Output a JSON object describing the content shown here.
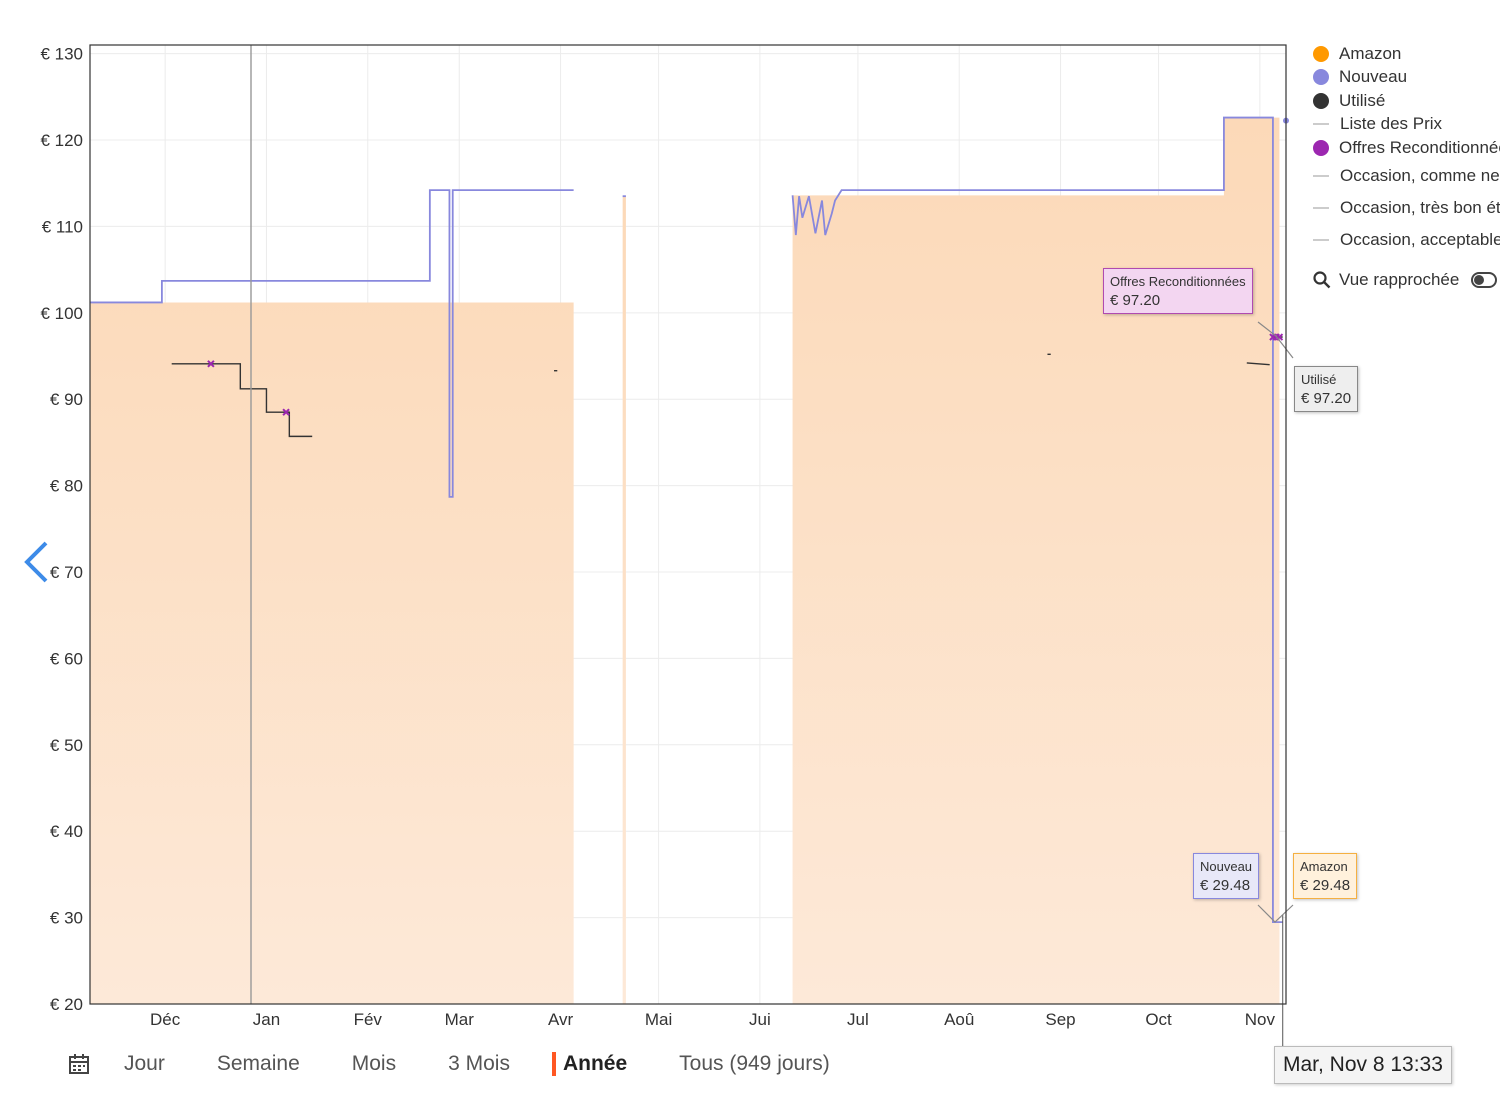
{
  "chart_data": {
    "type": "line",
    "title": "",
    "xlabel": "",
    "ylabel": "",
    "y_tick_labels": [
      "€ 20",
      "€ 30",
      "€ 40",
      "€ 50",
      "€ 60",
      "€ 70",
      "€ 80",
      "€ 90",
      "€ 100",
      "€ 110",
      "€ 120",
      "€ 130"
    ],
    "ylim": [
      20,
      131
    ],
    "x_tick_labels": [
      "Déc",
      "Jan",
      "Fév",
      "Mar",
      "Avr",
      "Mai",
      "Jui",
      "Jul",
      "Aoû",
      "Sep",
      "Oct",
      "Nov"
    ],
    "xlim": [
      "2021-11-08",
      "2022-11-09"
    ],
    "grid": true,
    "legend_position": "right",
    "series": [
      {
        "name": "Amazon",
        "color": "#ff9900",
        "style": "filled-area",
        "segments": [
          [
            [
              "2021-11-08",
              101.2
            ],
            [
              "2022-04-05",
              114.2
            ]
          ],
          [
            [
              "2022-04-20",
              113.5
            ],
            [
              "2022-04-21",
              113.5
            ]
          ],
          [
            [
              "2022-06-11",
              113.6
            ],
            [
              "2022-10-21",
              122.6
            ],
            [
              "2022-11-07",
              122.6
            ]
          ]
        ],
        "current_value": 29.48
      },
      {
        "name": "Nouveau",
        "color": "#8888dd",
        "style": "step-line",
        "segments": [
          [
            [
              "2021-11-08",
              101.2
            ],
            [
              "2021-11-30",
              101.2
            ],
            [
              "2021-11-30",
              103.7
            ],
            [
              "2022-02-20",
              103.7
            ],
            [
              "2022-02-20",
              114.2
            ],
            [
              "2022-02-26",
              114.2
            ],
            [
              "2022-02-26",
              78.7
            ],
            [
              "2022-02-27",
              78.7
            ],
            [
              "2022-02-27",
              114.2
            ],
            [
              "2022-04-05",
              114.2
            ]
          ],
          [
            [
              "2022-04-20",
              113.5
            ],
            [
              "2022-04-21",
              113.5
            ]
          ],
          [
            [
              "2022-06-11",
              113.6
            ],
            [
              "2022-06-12",
              109.0
            ],
            [
              "2022-06-13",
              113.5
            ],
            [
              "2022-06-14",
              111.0
            ],
            [
              "2022-06-16",
              113.5
            ],
            [
              "2022-06-18",
              109.2
            ],
            [
              "2022-06-20",
              113.0
            ],
            [
              "2022-06-21",
              109.0
            ],
            [
              "2022-06-23",
              111.5
            ],
            [
              "2022-06-24",
              113.0
            ],
            [
              "2022-06-26",
              114.2
            ],
            [
              "2022-10-21",
              114.2
            ],
            [
              "2022-10-21",
              122.6
            ],
            [
              "2022-11-05",
              122.6
            ],
            [
              "2022-11-05",
              29.48
            ],
            [
              "2022-11-08",
              29.48
            ]
          ]
        ],
        "current_value": 29.48
      },
      {
        "name": "Utilisé",
        "color": "#333333",
        "style": "step-line",
        "segments": [
          [
            [
              "2021-12-03",
              94.1
            ],
            [
              "2021-12-24",
              94.1
            ],
            [
              "2021-12-24",
              91.2
            ],
            [
              "2022-01-01",
              91.2
            ],
            [
              "2022-01-01",
              88.5
            ],
            [
              "2022-01-08",
              88.5
            ],
            [
              "2022-01-08",
              85.7
            ],
            [
              "2022-01-15",
              85.7
            ]
          ],
          [
            [
              "2022-03-30",
              93.3
            ],
            [
              "2022-03-31",
              93.3
            ]
          ],
          [
            [
              "2022-08-28",
              95.2
            ],
            [
              "2022-08-29",
              95.2
            ]
          ],
          [
            [
              "2022-10-28",
              94.2
            ],
            [
              "2022-11-04",
              94.0
            ]
          ],
          [
            [
              "2022-11-05",
              97.2
            ],
            [
              "2022-11-08",
              97.2
            ]
          ]
        ],
        "current_value": 97.2
      },
      {
        "name": "Liste des Prix",
        "color": "#cccccc",
        "style": "line",
        "segments": []
      },
      {
        "name": "Offres Reconditionnées",
        "color": "#9c27b0",
        "style": "markers",
        "points": [
          [
            "2021-12-15",
            94.1
          ],
          [
            "2022-01-07",
            88.5
          ],
          [
            "2022-11-05",
            97.2
          ],
          [
            "2022-11-06",
            97.2
          ],
          [
            "2022-11-07",
            97.2
          ]
        ],
        "current_value": 97.2
      },
      {
        "name": "Occasion, comme neuf",
        "color": "#cccccc",
        "style": "line",
        "segments": []
      },
      {
        "name": "Occasion, très bon état",
        "color": "#cccccc",
        "style": "line",
        "segments": []
      },
      {
        "name": "Occasion, acceptable",
        "color": "#cccccc",
        "style": "line",
        "segments": []
      }
    ]
  },
  "legend": {
    "items": [
      {
        "label": "Amazon",
        "color": "#ff9900",
        "kind": "dot"
      },
      {
        "label": "Nouveau",
        "color": "#8888dd",
        "kind": "dot"
      },
      {
        "label": "Utilisé",
        "color": "#333333",
        "kind": "dot"
      },
      {
        "label": "Liste des Prix",
        "color": "#cccccc",
        "kind": "dash"
      },
      {
        "label": "Offres Reconditionnées",
        "color": "#9c27b0",
        "kind": "dot"
      },
      {
        "label": "Occasion, comme neuf",
        "color": "#cccccc",
        "kind": "dash"
      },
      {
        "label": "Occasion, très bon état",
        "color": "#cccccc",
        "kind": "dash"
      },
      {
        "label": "Occasion, acceptable",
        "color": "#cccccc",
        "kind": "dash"
      }
    ],
    "closeup_label": "Vue rapprochée"
  },
  "tooltips": {
    "reconditionnees": {
      "name": "Offres Reconditionnées",
      "value": "€ 97.20"
    },
    "utilise": {
      "name": "Utilisé",
      "value": "€ 97.20"
    },
    "nouveau": {
      "name": "Nouveau",
      "value": "€ 29.48"
    },
    "amazon": {
      "name": "Amazon",
      "value": "€ 29.48"
    },
    "date": "Mar, Nov 8 13:33"
  },
  "range_selector": {
    "icon": "calendar-icon",
    "options": [
      "Jour",
      "Semaine",
      "Mois",
      "3 Mois",
      "Année",
      "Tous (949 jours)"
    ],
    "active": "Année"
  }
}
